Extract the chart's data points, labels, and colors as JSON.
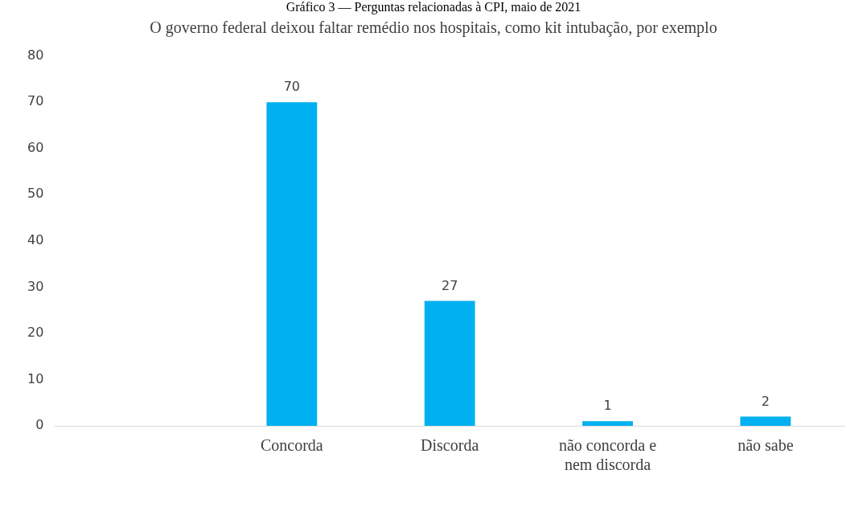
{
  "chart_data": {
    "type": "bar",
    "title": "O governo federal deixou faltar remédio nos hospitais, como kit intubação, por exemplo",
    "annotations": [
      "Gráfico 3 — Perguntas relacionadas à CPI, maio de 2021"
    ],
    "categories": [
      null,
      "Concorda",
      "Discorda",
      "não concorda e nem discorda",
      "não sabe"
    ],
    "values": [
      null,
      70,
      27,
      1,
      2
    ],
    "color": "#00b0f0",
    "ylim": [
      0,
      80
    ],
    "yticks": [
      0,
      10,
      20,
      30,
      40,
      50,
      60,
      70,
      80
    ],
    "grid": false,
    "legend": false,
    "data_labels": true
  }
}
